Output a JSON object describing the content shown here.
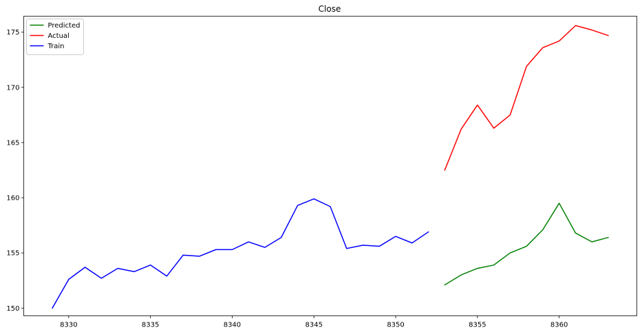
{
  "chart_data": {
    "type": "line",
    "title": "Close",
    "xlabel": "",
    "ylabel": "",
    "xlim": [
      8327.25,
      8364.75
    ],
    "ylim": [
      149.3,
      176.45
    ],
    "x_ticks": [
      8330,
      8335,
      8340,
      8345,
      8350,
      8355,
      8360
    ],
    "y_ticks": [
      150,
      155,
      160,
      165,
      170,
      175
    ],
    "grid": false,
    "legend_position": "upper-left",
    "series": [
      {
        "name": "Predicted",
        "color": "#008000",
        "x": [
          8353,
          8354,
          8355,
          8356,
          8357,
          8358,
          8359,
          8360,
          8361,
          8362,
          8363
        ],
        "y": [
          152.1,
          153.0,
          153.6,
          153.9,
          155.0,
          155.6,
          157.1,
          159.5,
          156.8,
          156.0,
          156.4
        ]
      },
      {
        "name": "Actual",
        "color": "#ff0000",
        "x": [
          8353,
          8354,
          8355,
          8356,
          8357,
          8358,
          8359,
          8360,
          8361,
          8362,
          8363
        ],
        "y": [
          162.5,
          166.2,
          168.4,
          166.3,
          167.5,
          171.9,
          173.6,
          174.2,
          175.6,
          175.2,
          174.7
        ]
      },
      {
        "name": "Train",
        "color": "#0000ff",
        "x": [
          8329,
          8330,
          8331,
          8332,
          8333,
          8334,
          8335,
          8336,
          8337,
          8338,
          8339,
          8340,
          8341,
          8342,
          8343,
          8344,
          8345,
          8346,
          8347,
          8348,
          8349,
          8350,
          8351,
          8352
        ],
        "y": [
          150.0,
          152.6,
          153.7,
          152.7,
          153.6,
          153.3,
          153.9,
          152.9,
          154.8,
          154.7,
          155.3,
          155.3,
          156.0,
          155.5,
          156.4,
          159.3,
          159.9,
          159.2,
          155.4,
          155.7,
          155.6,
          156.5,
          155.9,
          156.9
        ]
      }
    ]
  }
}
